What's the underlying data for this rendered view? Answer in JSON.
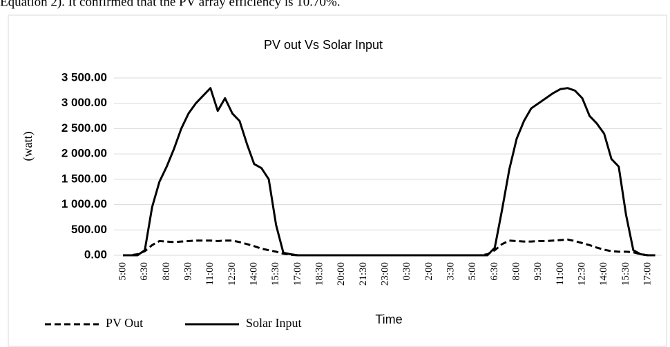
{
  "text_above": "Equation 2). It confirmed that the PV array efficiency is 10.70%.",
  "chart_data": {
    "type": "line",
    "title": "PV out Vs Solar Input",
    "y_label": "(watt)",
    "x_label": "Time",
    "categories": [
      "5:00",
      null,
      null,
      "6:30",
      null,
      null,
      "8:00",
      null,
      null,
      "9:30",
      null,
      null,
      "11:00",
      null,
      null,
      "12:30",
      null,
      null,
      "14:00",
      null,
      null,
      "15:30",
      null,
      null,
      "17:00",
      null,
      null,
      "18:30",
      null,
      null,
      "20:00",
      null,
      null,
      "21:30",
      null,
      null,
      "23:00",
      null,
      null,
      "0:30",
      null,
      null,
      "2:00",
      null,
      null,
      "3:30",
      null,
      null,
      "5:00",
      null,
      null,
      "6:30",
      null,
      null,
      "8:00",
      null,
      null,
      "9:30",
      null,
      null,
      "11:00",
      null,
      null,
      "12:30",
      null,
      null,
      "14:00",
      null,
      null,
      "15:30",
      null,
      null,
      "17:00",
      null
    ],
    "series": [
      {
        "name": "PV Out",
        "color": "#000000",
        "line_style": "dashed",
        "values": [
          0,
          0,
          20,
          80,
          200,
          280,
          270,
          260,
          270,
          280,
          290,
          290,
          290,
          280,
          290,
          290,
          260,
          220,
          180,
          130,
          100,
          70,
          30,
          10,
          0,
          0,
          0,
          0,
          0,
          0,
          0,
          0,
          0,
          0,
          0,
          0,
          0,
          0,
          0,
          0,
          0,
          0,
          0,
          0,
          0,
          0,
          0,
          0,
          0,
          0,
          20,
          100,
          220,
          290,
          280,
          270,
          270,
          280,
          280,
          290,
          300,
          310,
          280,
          240,
          200,
          150,
          110,
          80,
          70,
          70,
          60,
          20,
          0,
          0
        ]
      },
      {
        "name": "Solar Input",
        "color": "#000000",
        "line_style": "solid",
        "values": [
          0,
          0,
          0,
          100,
          950,
          1450,
          1750,
          2100,
          2500,
          2800,
          3000,
          3150,
          3300,
          2850,
          3100,
          2800,
          2650,
          2200,
          1800,
          1720,
          1500,
          600,
          50,
          20,
          0,
          0,
          0,
          0,
          0,
          0,
          0,
          0,
          0,
          0,
          0,
          0,
          0,
          0,
          0,
          0,
          0,
          0,
          0,
          0,
          0,
          0,
          0,
          0,
          0,
          0,
          0,
          150,
          900,
          1700,
          2300,
          2650,
          2900,
          3000,
          3100,
          3200,
          3280,
          3300,
          3250,
          3100,
          2750,
          2600,
          2400,
          1900,
          1750,
          800,
          100,
          20,
          0,
          0
        ]
      }
    ],
    "ylim": [
      0,
      3500
    ],
    "yticks": [
      {
        "value": 0,
        "label": "0.00"
      },
      {
        "value": 500,
        "label": "500.00"
      },
      {
        "value": 1000,
        "label": "1 000.00"
      },
      {
        "value": 1500,
        "label": "1 500.00"
      },
      {
        "value": 2000,
        "label": "2 000.00"
      },
      {
        "value": 2500,
        "label": "2 500.00"
      },
      {
        "value": 3000,
        "label": "3 000.00"
      },
      {
        "value": 3500,
        "label": "3 500.00"
      }
    ],
    "grid": true,
    "legend": "bottom-left"
  }
}
